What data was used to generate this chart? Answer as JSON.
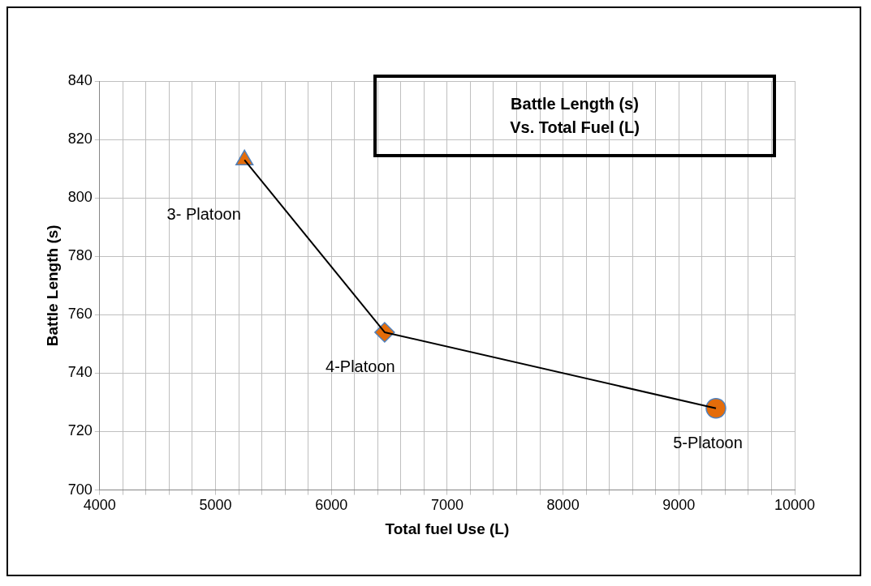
{
  "chart_data": {
    "type": "scatter",
    "title": "Battle Length (s)\nVs. Total Fuel (L)",
    "xlabel": "Total fuel Use (L)",
    "ylabel": "Battle Length (s)",
    "xlim": [
      4000,
      10000
    ],
    "xticks": [
      4000,
      {
        "value": 4200,
        "label": null
      },
      {
        "value": 4400,
        "label": null
      },
      {
        "value": 4600,
        "label": null
      },
      {
        "value": 4800,
        "label": null
      },
      5000,
      {
        "value": 5200,
        "label": null
      },
      {
        "value": 5400,
        "label": null
      },
      {
        "value": 5600,
        "label": null
      },
      {
        "value": 5800,
        "label": null
      },
      6000,
      {
        "value": 6200,
        "label": null
      },
      {
        "value": 6400,
        "label": null
      },
      {
        "value": 6600,
        "label": null
      },
      {
        "value": 6800,
        "label": null
      },
      7000,
      {
        "value": 7200,
        "label": null
      },
      {
        "value": 7400,
        "label": null
      },
      {
        "value": 7600,
        "label": null
      },
      {
        "value": 7800,
        "label": null
      },
      8000,
      {
        "value": 8200,
        "label": null
      },
      {
        "value": 8400,
        "label": null
      },
      {
        "value": 8600,
        "label": null
      },
      {
        "value": 8800,
        "label": null
      },
      9000,
      {
        "value": 9200,
        "label": null
      },
      {
        "value": 9400,
        "label": null
      },
      {
        "value": 9600,
        "label": null
      },
      {
        "value": 9800,
        "label": null
      },
      10000
    ],
    "ylim": [
      700,
      840
    ],
    "yticks": [
      700,
      720,
      740,
      760,
      780,
      800,
      820,
      840
    ],
    "grid": true,
    "series": [
      {
        "type": "line",
        "color": "#000000",
        "marker": "none",
        "x": [
          5250,
          6460,
          9320
        ],
        "values": [
          813,
          754,
          728
        ]
      },
      {
        "type": "scatter",
        "color": "#e46c0a",
        "marker": "triangle",
        "x": [
          5250
        ],
        "values": [
          813
        ]
      },
      {
        "type": "scatter",
        "color": "#e46c0a",
        "marker": "diamond",
        "x": [
          6460
        ],
        "values": [
          754
        ]
      },
      {
        "type": "scatter",
        "color": "#e46c0a",
        "marker": "circle",
        "x": [
          9320
        ],
        "values": [
          728
        ]
      }
    ],
    "annotations": [
      {
        "text": "3- Platoon",
        "x": 5250,
        "y": 813
      },
      {
        "text": "4-Platoon",
        "x": 6460,
        "y": 754
      },
      {
        "text": "5-Platoon",
        "x": 9320,
        "y": 728
      }
    ]
  }
}
